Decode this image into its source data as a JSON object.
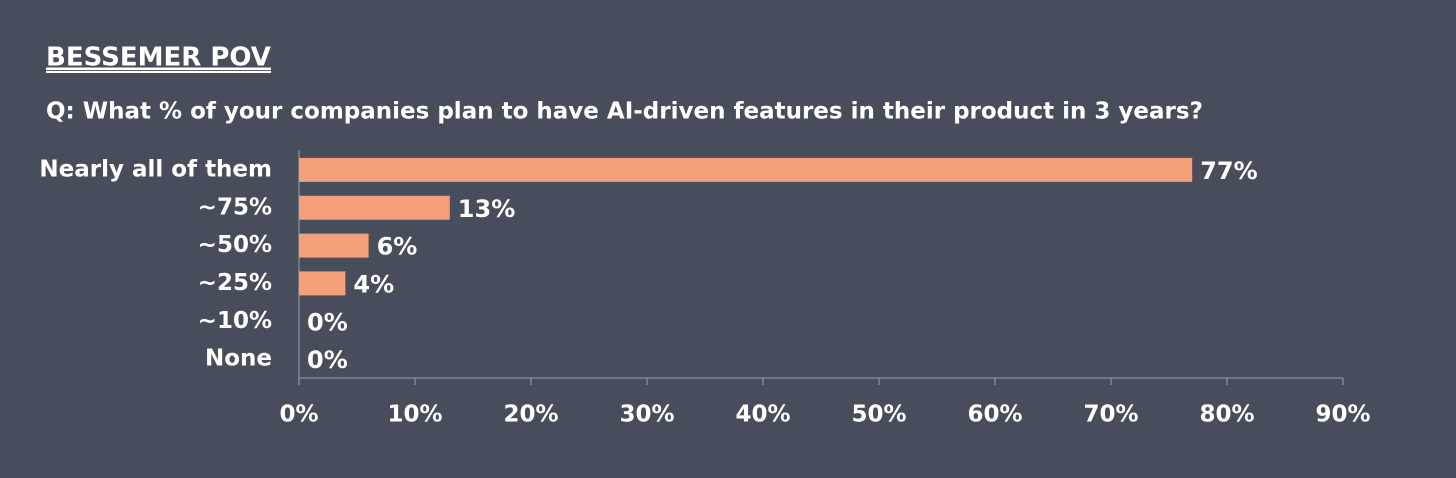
{
  "chart_data": {
    "type": "hbar",
    "title": "BESSEMER POV",
    "subtitle": "Q: What % of your companies plan to have AI-driven features in their product in 3 years?",
    "categories": [
      "Nearly all of them",
      "~75%",
      "~50%",
      "~25%",
      "~10%",
      "None"
    ],
    "values": [
      77,
      13,
      6,
      4,
      0,
      0
    ],
    "value_labels": [
      "77%",
      "13%",
      "6%",
      "4%",
      "0%",
      "0%"
    ],
    "color": "#f4a07a",
    "xlim": [
      0,
      90
    ],
    "xticks": [
      {
        "value": 0,
        "label": "0%"
      },
      {
        "value": 10,
        "label": "10%"
      },
      {
        "value": 20,
        "label": "20%"
      },
      {
        "value": 30,
        "label": "30%"
      },
      {
        "value": 40,
        "label": "40%"
      },
      {
        "value": 50,
        "label": "50%"
      },
      {
        "value": 60,
        "label": "60%"
      },
      {
        "value": 70,
        "label": "70%"
      },
      {
        "value": 80,
        "label": "80%"
      },
      {
        "value": 90,
        "label": "90%"
      }
    ],
    "grid": false
  }
}
